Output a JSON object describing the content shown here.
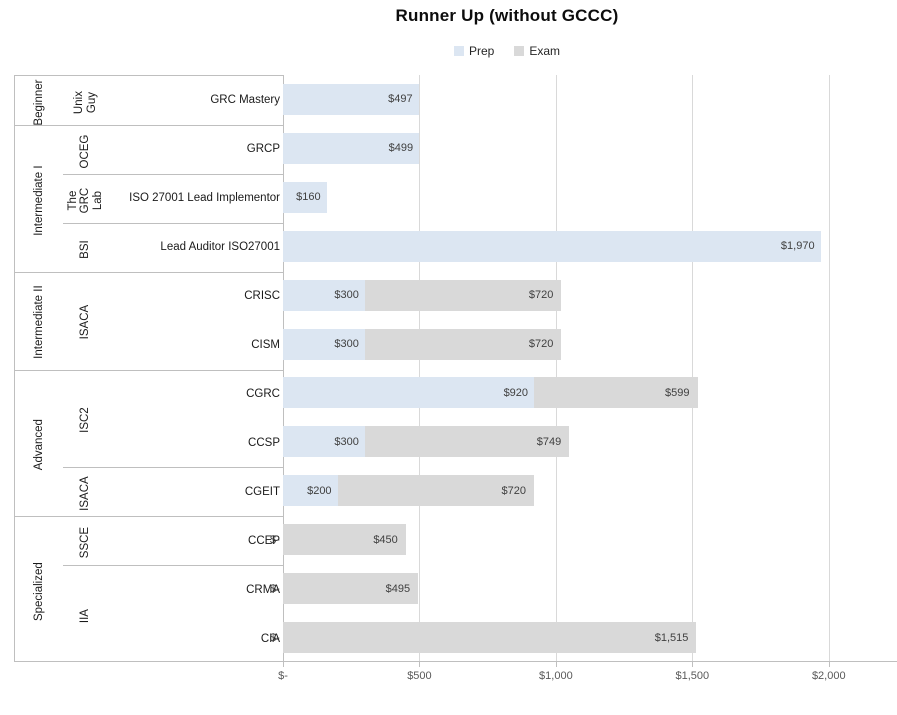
{
  "title": "Runner Up (without GCCC)",
  "legend": {
    "items": [
      {
        "label": "Prep",
        "color": "#dce6f2"
      },
      {
        "label": "Exam",
        "color": "#d9d9d9"
      }
    ]
  },
  "colors": {
    "prep": "#dce6f2",
    "exam": "#d9d9d9",
    "gridline": "#d9d9d9",
    "axis_line": "#bfbfbf",
    "value_label_text": "#404040",
    "tick_label_text": "#595959"
  },
  "chart_data": {
    "type": "bar",
    "orientation": "horizontal",
    "stacked": true,
    "title": "Runner Up (without GCCC)",
    "series": [
      "Prep",
      "Exam"
    ],
    "legend_position": "top",
    "grid": "vertical",
    "axis": {
      "max": 2250,
      "ticks": [
        {
          "value": 0,
          "label": "$-"
        },
        {
          "value": 500,
          "label": "$500"
        },
        {
          "value": 1000,
          "label": "$1,000"
        },
        {
          "value": 1500,
          "label": "$1,500"
        },
        {
          "value": 2000,
          "label": "$2,000"
        }
      ]
    },
    "groups": [
      {
        "level": "Beginner",
        "orgs": [
          {
            "org": "Unix Guy",
            "rows": [
              {
                "cert": "GRC Mastery",
                "prep": 497,
                "prep_label": "$497",
                "exam": null,
                "exam_label": null
              }
            ]
          }
        ]
      },
      {
        "level": "Intermediate I",
        "orgs": [
          {
            "org": "OCEG",
            "rows": [
              {
                "cert": "GRCP",
                "prep": 499,
                "prep_label": "$499",
                "exam": null,
                "exam_label": null
              }
            ]
          },
          {
            "org": "The GRC Lab",
            "rows": [
              {
                "cert": "ISO 27001 Lead Implementor",
                "prep": 160,
                "prep_label": "$160",
                "exam": null,
                "exam_label": null
              }
            ]
          },
          {
            "org": "BSI",
            "rows": [
              {
                "cert": "Lead Auditor ISO27001",
                "prep": 1970,
                "prep_label": "$1,970",
                "exam": null,
                "exam_label": null
              }
            ]
          }
        ]
      },
      {
        "level": "Intermediate II",
        "orgs": [
          {
            "org": "ISACA",
            "rows": [
              {
                "cert": "CRISC",
                "prep": 300,
                "prep_label": "$300",
                "exam": 720,
                "exam_label": "$720"
              },
              {
                "cert": "CISM",
                "prep": 300,
                "prep_label": "$300",
                "exam": 720,
                "exam_label": "$720"
              }
            ]
          }
        ]
      },
      {
        "level": "Advanced",
        "orgs": [
          {
            "org": "ISC2",
            "rows": [
              {
                "cert": "CGRC",
                "prep": 920,
                "prep_label": "$920",
                "exam": 599,
                "exam_label": "$599"
              },
              {
                "cert": "CCSP",
                "prep": 300,
                "prep_label": "$300",
                "exam": 749,
                "exam_label": "$749"
              }
            ]
          },
          {
            "org": "ISACA",
            "rows": [
              {
                "cert": "CGEIT",
                "prep": 200,
                "prep_label": "$200",
                "exam": 720,
                "exam_label": "$720"
              }
            ]
          }
        ]
      },
      {
        "level": "Specialized",
        "orgs": [
          {
            "org": "SSCE",
            "rows": [
              {
                "cert": "CCEP",
                "prep": 0,
                "prep_label": "$-",
                "exam": 450,
                "exam_label": "$450"
              }
            ]
          },
          {
            "org": "IIA",
            "rows": [
              {
                "cert": "CRMA",
                "prep": 0,
                "prep_label": "$-",
                "exam": 495,
                "exam_label": "$495"
              },
              {
                "cert": "CIA",
                "prep": 0,
                "prep_label": "$-",
                "exam": 1515,
                "exam_label": "$1,515"
              }
            ]
          }
        ]
      }
    ]
  }
}
